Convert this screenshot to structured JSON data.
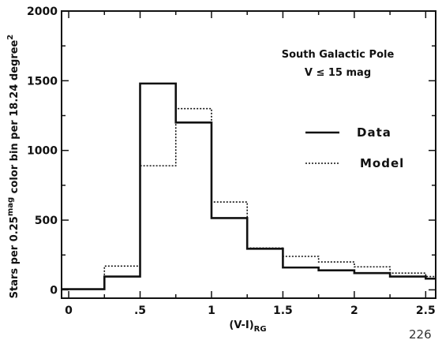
{
  "chart_data": {
    "type": "step-histogram",
    "xlabel": {
      "main": "(V-I)",
      "sub": "RG"
    },
    "ylabel": {
      "part1": "Stars per 0.25",
      "sup": "mag",
      "part2": " color bin per 18.24 degree",
      "sup2": "2"
    },
    "annotation": [
      "South Galactic Pole",
      "V ≤ 15 mag"
    ],
    "xlim": [
      -0.05,
      2.57
    ],
    "ylim": [
      -60,
      2000
    ],
    "x_ticks": [
      0,
      0.5,
      1,
      1.5,
      2,
      2.5
    ],
    "x_tick_labels": [
      "0",
      ".5",
      "1",
      "1.5",
      "2",
      "2.5"
    ],
    "y_ticks": [
      0,
      500,
      1000,
      1500,
      2000
    ],
    "y_tick_labels": [
      "0",
      "500",
      "1000",
      "1500",
      "2000"
    ],
    "bin_edges": [
      0,
      0.25,
      0.5,
      0.75,
      1.0,
      1.25,
      1.5,
      1.75,
      2.0,
      2.25,
      2.5
    ],
    "series": [
      {
        "name": "Data",
        "style": "solid",
        "color": "#111111",
        "values": [
          5,
          95,
          1480,
          1200,
          515,
          295,
          160,
          140,
          120,
          95
        ]
      },
      {
        "name": "Model",
        "style": "dotted",
        "color": "#111111",
        "values": [
          5,
          170,
          890,
          1300,
          630,
          300,
          240,
          200,
          165,
          120
        ]
      }
    ],
    "tail_value": {
      "Data": 80,
      "Model": 95
    },
    "legend_position": "right-middle"
  },
  "corner_mark": "226"
}
